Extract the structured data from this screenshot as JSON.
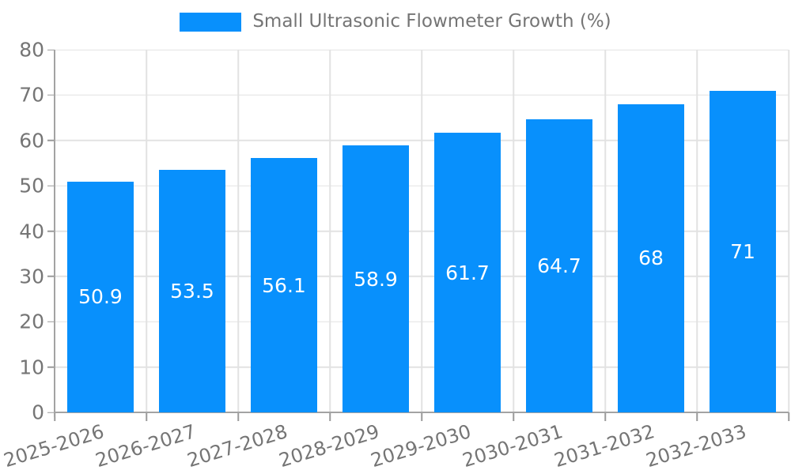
{
  "chart_data": {
    "type": "bar",
    "title": "Small Ultrasonic Flowmeter Growth (%)",
    "legend": {
      "label": "Small Ultrasonic Flowmeter Growth (%)",
      "position": "top-center"
    },
    "categories": [
      "2025-2026",
      "2026-2027",
      "2027-2028",
      "2028-2029",
      "2029-2030",
      "2030-2031",
      "2031-2032",
      "2032-2033"
    ],
    "values": [
      50.9,
      53.5,
      56.1,
      58.9,
      61.7,
      64.7,
      68,
      71
    ],
    "value_labels": [
      "50.9",
      "53.5",
      "56.1",
      "58.9",
      "61.7",
      "64.7",
      "68",
      "71"
    ],
    "xlabel": "",
    "ylabel": "",
    "ylim": [
      0,
      80
    ],
    "yticks": [
      0,
      10,
      20,
      30,
      40,
      50,
      60,
      70,
      80
    ],
    "grid": true,
    "x_label_rotation_deg": -17,
    "colors": {
      "bar": "#0890FC",
      "bar_value_text": "#FFFFFF",
      "grid": "#E2E2E2",
      "spine": "#A3A3A3",
      "tick": "#9A9A9A",
      "text": "#757575",
      "background": "#FFFFFF"
    }
  }
}
